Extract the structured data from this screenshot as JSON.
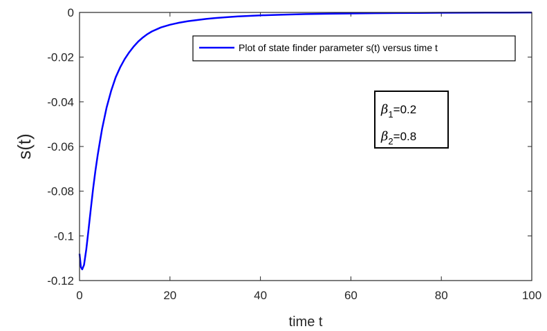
{
  "chart_data": {
    "type": "line",
    "title": "",
    "xlabel": "time t",
    "ylabel": "s(t)",
    "xlim": [
      0,
      100
    ],
    "ylim": [
      -0.12,
      0
    ],
    "xticks": [
      0,
      20,
      40,
      60,
      80,
      100
    ],
    "xtick_labels": [
      "0",
      "20",
      "40",
      "60",
      "80",
      "100"
    ],
    "yticks": [
      0,
      -0.02,
      -0.04,
      -0.06,
      -0.08,
      -0.1,
      -0.12
    ],
    "ytick_labels": [
      "0",
      "-0.02",
      "-0.04",
      "-0.06",
      "-0.08",
      "-0.1",
      "-0.12"
    ],
    "grid": false,
    "legend_position": "top-right",
    "series": [
      {
        "name": "Plot of state finder parameter s(t) versus time t",
        "color": "#0000ff",
        "x": [
          0,
          0.3,
          0.6,
          1,
          1.5,
          2,
          2.5,
          3,
          3.5,
          4,
          4.5,
          5,
          6,
          7,
          8,
          9,
          10,
          11,
          12,
          13,
          14,
          15,
          16,
          18,
          20,
          22,
          24,
          26,
          28,
          30,
          32,
          35,
          40,
          45,
          50,
          55,
          60,
          65,
          70,
          75,
          80,
          85,
          90,
          95,
          100
        ],
        "y": [
          -0.108,
          -0.114,
          -0.115,
          -0.113,
          -0.106,
          -0.097,
          -0.088,
          -0.079,
          -0.071,
          -0.064,
          -0.058,
          -0.052,
          -0.0425,
          -0.035,
          -0.029,
          -0.0245,
          -0.0208,
          -0.0178,
          -0.0152,
          -0.013,
          -0.0112,
          -0.0097,
          -0.0085,
          -0.0067,
          -0.0055,
          -0.0046,
          -0.0039,
          -0.0034,
          -0.0029,
          -0.0025,
          -0.0022,
          -0.0018,
          -0.0013,
          -0.001,
          -0.00075,
          -0.00058,
          -0.00045,
          -0.00035,
          -0.00027,
          -0.00021,
          -0.00016,
          -0.00012,
          -9e-05,
          -6e-05,
          -4e-05
        ]
      }
    ],
    "annotation": {
      "lines": [
        {
          "symbol": "β",
          "subscript": "1",
          "text": "=0.2"
        },
        {
          "symbol": "β",
          "subscript": "2",
          "text": "=0.8"
        }
      ]
    }
  }
}
